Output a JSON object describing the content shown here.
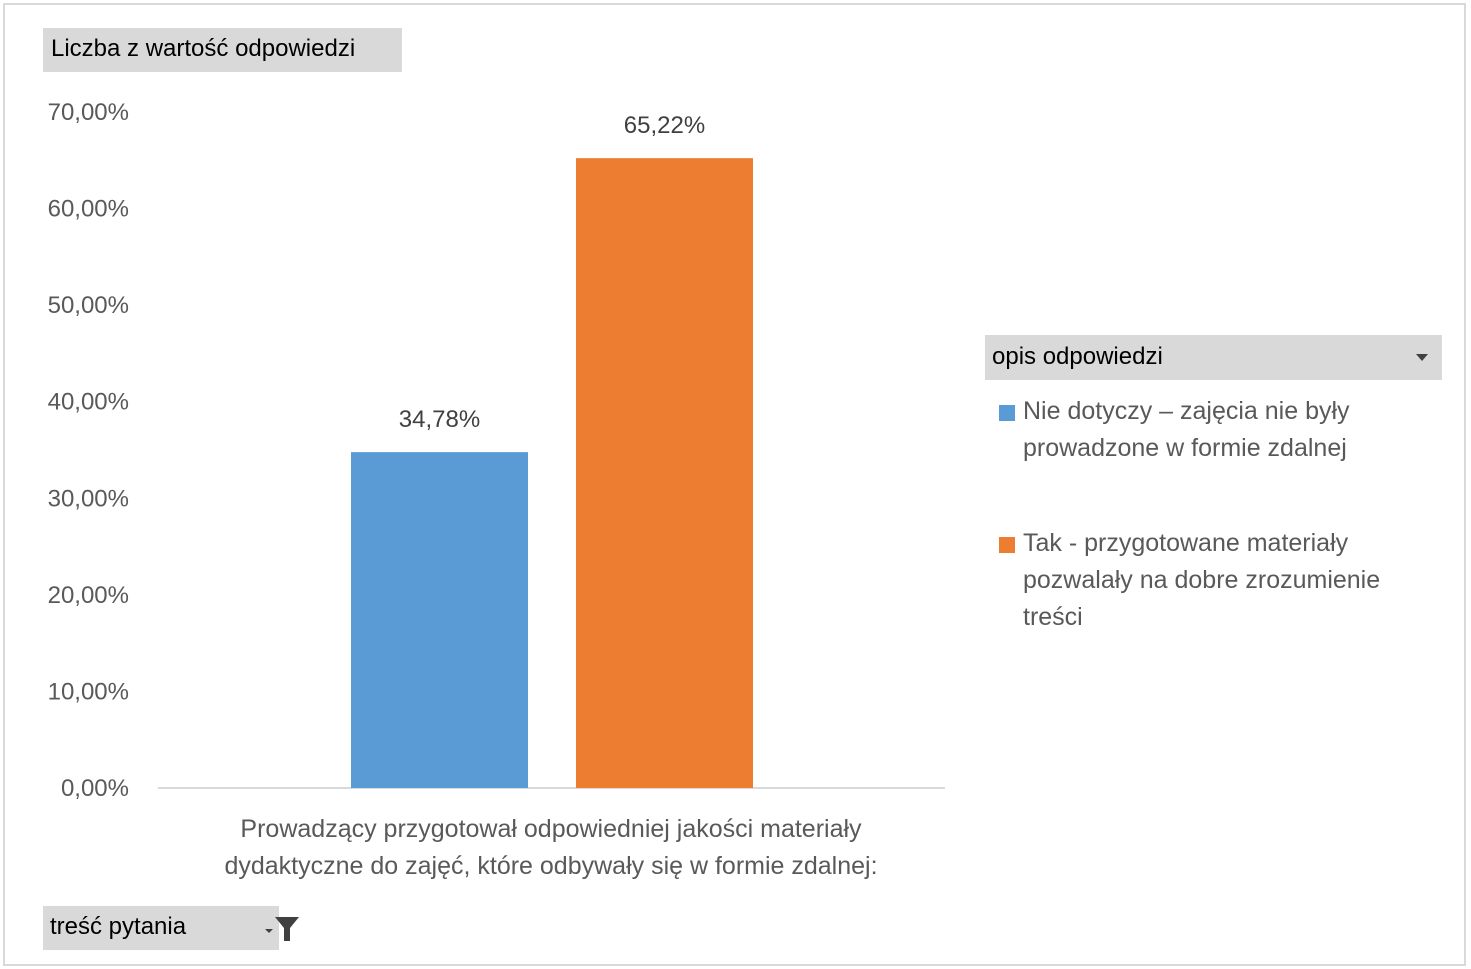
{
  "field_buttons": {
    "values": "Liczba z wartość odpowiedzi",
    "legend": "opis odpowiedzi",
    "axis": "treść pytania"
  },
  "colors": {
    "series_1": "#5b9bd5",
    "series_2": "#ed7d31",
    "axis_line": "#d9d9d9",
    "field_button": "#d9d9d9"
  },
  "icons": {
    "legend_dropdown": "chevron-down-icon",
    "axis_filter": "filter-icon"
  },
  "chart_data": {
    "type": "bar",
    "categories": [
      "Prowadzący przygotował odpowiedniej jakości materiały dydaktyczne do zajęć, które odbywały się w formie zdalnej:"
    ],
    "category_lines": [
      "Prowadzący przygotował odpowiedniej jakości materiały",
      "dydaktyczne do zajęć, które odbywały się w formie zdalnej:"
    ],
    "series": [
      {
        "name": "Nie dotyczy – zajęcia nie były prowadzone w formie zdalnej",
        "name_lines": [
          "Nie dotyczy – zajęcia nie były",
          "prowadzone w formie zdalnej"
        ],
        "values": [
          34.78
        ],
        "labels": [
          "34,78%"
        ]
      },
      {
        "name": "Tak - przygotowane materiały pozwalały na dobre zrozumienie treści",
        "name_lines": [
          "Tak - przygotowane materiały",
          "pozwalały na dobre zrozumienie",
          "treści"
        ],
        "values": [
          65.22
        ],
        "labels": [
          "65,22%"
        ]
      }
    ],
    "ylim": [
      0,
      70
    ],
    "yticks": [
      0,
      10,
      20,
      30,
      40,
      50,
      60,
      70
    ],
    "ytick_labels": [
      "0,00%",
      "10,00%",
      "20,00%",
      "30,00%",
      "40,00%",
      "50,00%",
      "60,00%",
      "70,00%"
    ],
    "grid": false,
    "legend_position": "right"
  }
}
